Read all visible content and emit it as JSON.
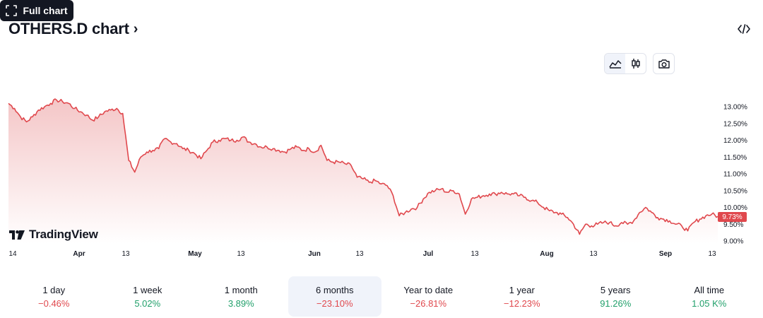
{
  "header": {
    "title": "OTHERS.D chart",
    "title_chevron": "›"
  },
  "toolbar": {
    "full_chart_label": "Full chart",
    "chart_style_active": "area"
  },
  "chart": {
    "watermark": "TradingView",
    "current_value_label": "9.73%",
    "colors": {
      "line": "#e0484d",
      "fill_top": "#f4c6c7",
      "fill_bottom": "#ffffff"
    }
  },
  "chart_data": {
    "type": "area",
    "title": "OTHERS.D",
    "xlabel": "",
    "ylabel": "",
    "ylim": [
      9.0,
      13.0
    ],
    "y_ticks": [
      "13.00%",
      "12.50%",
      "12.00%",
      "11.50%",
      "11.00%",
      "10.50%",
      "10.00%",
      "9.50%",
      "9.00%"
    ],
    "x_ticks": [
      "14",
      "Apr",
      "13",
      "May",
      "13",
      "Jun",
      "13",
      "Jul",
      "13",
      "Aug",
      "13",
      "Sep",
      "13"
    ],
    "x_tick_bold": [
      false,
      true,
      false,
      true,
      false,
      true,
      false,
      true,
      false,
      true,
      false,
      true,
      false
    ],
    "last_value": 9.73,
    "series": [
      {
        "values": [
          13.1,
          12.95,
          12.7,
          12.55,
          12.7,
          12.9,
          13.0,
          13.1,
          13.2,
          13.15,
          13.1,
          12.95,
          12.85,
          12.75,
          12.6,
          12.7,
          12.85,
          12.9,
          12.95,
          12.8,
          11.4,
          11.05,
          11.5,
          11.65,
          11.7,
          11.75,
          12.05,
          11.95,
          11.9,
          11.75,
          11.7,
          11.6,
          11.45,
          11.7,
          11.95,
          12.0,
          12.05,
          12.0,
          12.0,
          12.1,
          11.95,
          11.9,
          11.8,
          11.8,
          11.75,
          11.7,
          11.65,
          11.75,
          11.8,
          11.7,
          11.75,
          11.65,
          11.85,
          11.4,
          11.35,
          11.35,
          11.3,
          11.25,
          10.9,
          10.85,
          10.75,
          10.8,
          10.7,
          10.65,
          10.35,
          9.75,
          9.85,
          9.95,
          10.0,
          10.25,
          10.45,
          10.5,
          10.55,
          10.45,
          10.5,
          10.4,
          9.8,
          10.25,
          10.3,
          10.35,
          10.4,
          10.4,
          10.45,
          10.4,
          10.4,
          10.35,
          10.3,
          10.2,
          10.15,
          10.0,
          9.9,
          9.85,
          9.8,
          9.7,
          9.5,
          9.2,
          9.5,
          9.45,
          9.5,
          9.55,
          9.55,
          9.45,
          9.55,
          9.5,
          9.6,
          9.85,
          10.0,
          9.85,
          9.7,
          9.65,
          9.6,
          9.5,
          9.45,
          9.3,
          9.55,
          9.65,
          9.75,
          9.8,
          9.73
        ]
      }
    ],
    "legend": "none",
    "grid": false
  },
  "periods": [
    {
      "label": "1 day",
      "value": "−0.46%",
      "trend": "neg"
    },
    {
      "label": "1 week",
      "value": "5.02%",
      "trend": "pos"
    },
    {
      "label": "1 month",
      "value": "3.89%",
      "trend": "pos"
    },
    {
      "label": "6 months",
      "value": "−23.10%",
      "trend": "neg"
    },
    {
      "label": "Year to date",
      "value": "−26.81%",
      "trend": "neg"
    },
    {
      "label": "1 year",
      "value": "−12.23%",
      "trend": "neg"
    },
    {
      "label": "5 years",
      "value": "91.26%",
      "trend": "pos"
    },
    {
      "label": "All time",
      "value": "1.05 K%",
      "trend": "pos"
    }
  ],
  "selected_period_index": 3,
  "icons": {
    "title_chevron": "chevron-right-icon",
    "embed": "embed-code-icon",
    "area_style": "area-chart-icon",
    "candle_style": "candlestick-icon",
    "snapshot": "camera-icon",
    "full_chart": "fullscreen-icon",
    "logo": "tradingview-logo-icon"
  }
}
